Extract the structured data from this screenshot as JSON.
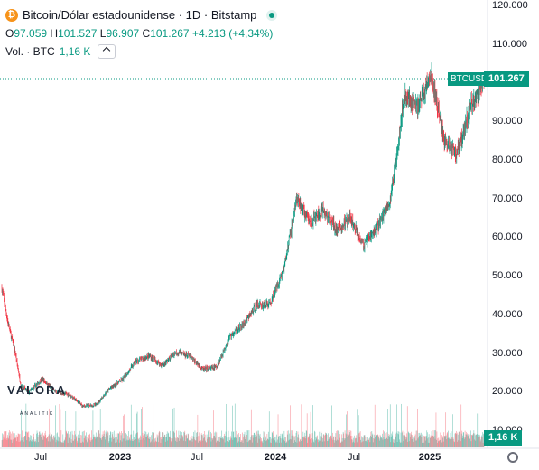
{
  "header": {
    "symbol_icon": "bitcoin-icon",
    "title": "Bitcoin/Dólar estadounidense · 1D · Bitstamp",
    "ohlc": {
      "o_label": "O",
      "o": "97.059",
      "h_label": "H",
      "h": "101.527",
      "l_label": "L",
      "l": "96.907",
      "c_label": "C",
      "c": "101.267",
      "change": "+4.213 (+4,34%)"
    },
    "volume": {
      "label": "Vol. · BTC",
      "value": "1,16 K"
    }
  },
  "price_tags": {
    "symbol_label": "BTCUSD",
    "last_price": "101.267",
    "volume_value": "1,16 K"
  },
  "watermark": {
    "brand": "VALORA",
    "sub": "ANALITIK"
  },
  "colors": {
    "up": "#089981",
    "down": "#f23645",
    "bitcoin": "#f7931a"
  },
  "chart_data": {
    "type": "candlestick",
    "y_ticks": [
      "120.000",
      "110.000",
      "100.000",
      "90.000",
      "80.000",
      "70.000",
      "60.000",
      "50.000",
      "40.000",
      "30.000",
      "20.000",
      "10.000"
    ],
    "x_ticks": [
      "Jul",
      "2023",
      "Jul",
      "2024",
      "Jul",
      "2025"
    ],
    "ylim": [
      10000,
      120000
    ],
    "series": [
      {
        "values": [
          [
            "2022-05",
            47000
          ],
          [
            "2022-05-15",
            38000
          ],
          [
            "2022-06",
            30000
          ],
          [
            "2022-06-13",
            22000
          ],
          [
            "2022-07",
            20000
          ],
          [
            "2022-08",
            23500
          ],
          [
            "2022-09",
            20000
          ],
          [
            "2022-10",
            19500
          ],
          [
            "2022-11",
            16500
          ],
          [
            "2022-12",
            16800
          ],
          [
            "2023-01",
            21000
          ],
          [
            "2023-02",
            23500
          ],
          [
            "2023-03",
            28000
          ],
          [
            "2023-04",
            29500
          ],
          [
            "2023-05",
            27000
          ],
          [
            "2023-06",
            30500
          ],
          [
            "2023-07",
            29500
          ],
          [
            "2023-08",
            26000
          ],
          [
            "2023-09",
            26500
          ],
          [
            "2023-10",
            34500
          ],
          [
            "2023-11",
            37500
          ],
          [
            "2023-12",
            42500
          ],
          [
            "2024-01",
            43000
          ],
          [
            "2024-02",
            52000
          ],
          [
            "2024-03",
            70000
          ],
          [
            "2024-04",
            64000
          ],
          [
            "2024-05",
            67000
          ],
          [
            "2024-06",
            62000
          ],
          [
            "2024-07",
            65000
          ],
          [
            "2024-08",
            58000
          ],
          [
            "2024-09",
            63000
          ],
          [
            "2024-10",
            70000
          ],
          [
            "2024-11",
            97000
          ],
          [
            "2024-12",
            94000
          ],
          [
            "2025-01",
            102000
          ],
          [
            "2025-02",
            85000
          ],
          [
            "2025-03",
            82000
          ],
          [
            "2025-04",
            94000
          ],
          [
            "2025-05",
            101267
          ]
        ]
      }
    ]
  }
}
